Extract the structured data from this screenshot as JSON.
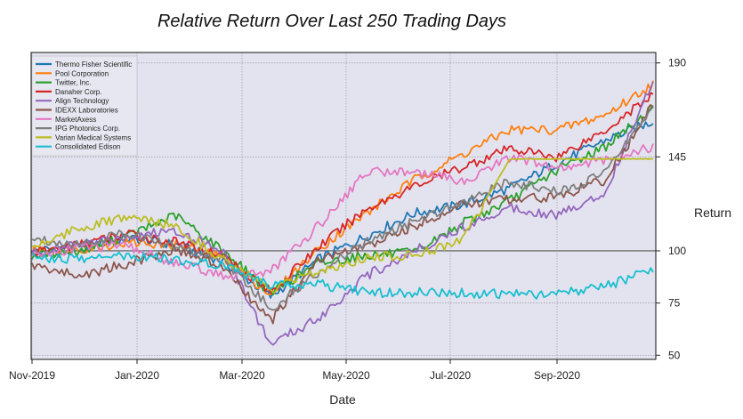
{
  "chart_data": {
    "type": "line",
    "title": "Relative Return Over Last 250 Trading Days",
    "xlabel": "Date",
    "ylabel": "Return",
    "x_ticks": [
      "Nov-2019",
      "Jan-2020",
      "Mar-2020",
      "May-2020",
      "Jul-2020",
      "Sep-2020"
    ],
    "y_ticks": [
      50,
      75,
      100,
      145,
      190
    ],
    "ylim": [
      48,
      195
    ],
    "reference_line": 100,
    "grid": true,
    "legend_position": "top-left",
    "x": [
      "Nov-2019",
      "Dec-2019",
      "Jan-2020",
      "Feb-2020",
      "Mar-2020",
      "Mar-2020",
      "Apr-2020",
      "May-2020",
      "Jun-2020",
      "Jul-2020",
      "Aug-2020",
      "Sep-2020",
      "Oct-2020",
      "Oct-2020"
    ],
    "series": [
      {
        "name": "Thermo Fisher Scientific",
        "color": "#1f77b4",
        "values": [
          100,
          102,
          106,
          103,
          95,
          78,
          96,
          107,
          118,
          122,
          130,
          142,
          153,
          162
        ]
      },
      {
        "name": "Pool Corporation",
        "color": "#ff7f0e",
        "values": [
          100,
          101,
          104,
          103,
          97,
          79,
          101,
          118,
          134,
          146,
          158,
          158,
          165,
          180
        ]
      },
      {
        "name": "Twitter, Inc.",
        "color": "#2ca02c",
        "values": [
          98,
          100,
          107,
          117,
          100,
          80,
          94,
          98,
          99,
          113,
          124,
          139,
          150,
          168
        ]
      },
      {
        "name": "Danaher Corp.",
        "color": "#d62728",
        "values": [
          99,
          103,
          108,
          104,
          98,
          80,
          102,
          120,
          131,
          140,
          149,
          145,
          158,
          175
        ]
      },
      {
        "name": "Align Technology",
        "color": "#9467bd",
        "values": [
          99,
          103,
          107,
          110,
          100,
          55,
          68,
          88,
          100,
          111,
          121,
          117,
          128,
          182
        ]
      },
      {
        "name": "IDEXX Laboratories",
        "color": "#8c564b",
        "values": [
          93,
          88,
          94,
          101,
          92,
          66,
          96,
          102,
          112,
          122,
          125,
          126,
          134,
          170
        ]
      },
      {
        "name": "MarketAxess",
        "color": "#e377c2",
        "values": [
          97,
          102,
          102,
          94,
          88,
          90,
          112,
          138,
          138,
          133,
          145,
          139,
          144,
          150
        ]
      },
      {
        "name": "IPG Photonics Corp.",
        "color": "#7f7f7f",
        "values": [
          106,
          103,
          109,
          102,
          96,
          72,
          90,
          104,
          114,
          124,
          133,
          128,
          137,
          170
        ]
      },
      {
        "name": "Varian Medical Systems",
        "color": "#bcbd22",
        "values": [
          102,
          111,
          116,
          112,
          96,
          81,
          90,
          97,
          98,
          105,
          144,
          144,
          144,
          144
        ]
      },
      {
        "name": "Consolidated Edison",
        "color": "#17becf",
        "values": [
          97,
          96,
          98,
          96,
          93,
          84,
          84,
          80,
          80,
          80,
          79,
          79,
          83,
          91
        ]
      }
    ]
  }
}
